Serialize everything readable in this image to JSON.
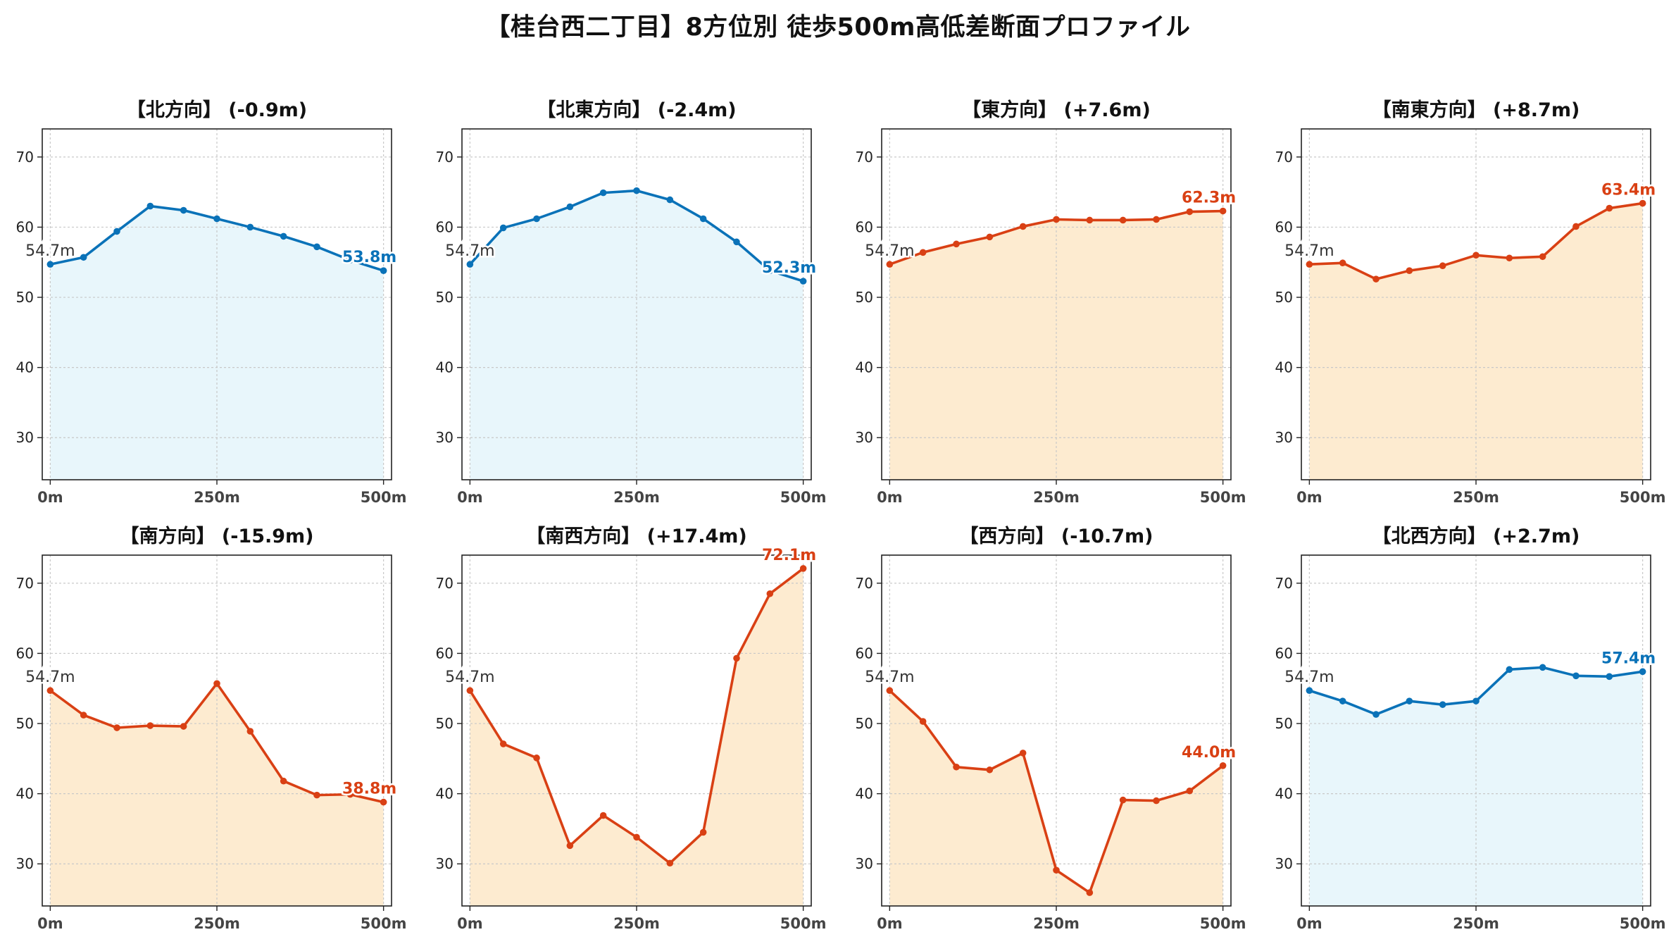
{
  "title": "【桂台西二丁目】8方位別 徒歩500m高低差断面プロファイル",
  "colors": {
    "uphill": "#d94014",
    "uphill_fill": "#fdebd0",
    "downhill": "#0a72b8",
    "downhill_fill": "#e8f6fb",
    "start_label": "#333333"
  },
  "chart_data": [
    {
      "type": "area",
      "title": "【北方向】 (-0.9m)",
      "trend": "down",
      "x": [
        0,
        50,
        100,
        150,
        200,
        250,
        300,
        350,
        400,
        450,
        500
      ],
      "y": [
        54.7,
        55.7,
        59.4,
        63.0,
        62.4,
        61.2,
        60.0,
        58.7,
        57.2,
        55.3,
        53.8
      ],
      "start_label": "54.7m",
      "end_label": "53.8m",
      "xticks": [
        "0m",
        "250m",
        "500m"
      ],
      "yticks": [
        "30",
        "40",
        "50",
        "60",
        "70"
      ],
      "ylim": [
        24,
        74
      ],
      "xlim": [
        -12,
        512
      ],
      "grid": true
    },
    {
      "type": "area",
      "title": "【北東方向】 (-2.4m)",
      "trend": "down",
      "x": [
        0,
        50,
        100,
        150,
        200,
        250,
        300,
        350,
        400,
        450,
        500
      ],
      "y": [
        54.7,
        59.9,
        61.2,
        62.9,
        64.9,
        65.2,
        63.9,
        61.2,
        57.9,
        53.8,
        52.3
      ],
      "start_label": "54.7m",
      "end_label": "52.3m",
      "xticks": [
        "0m",
        "250m",
        "500m"
      ],
      "yticks": [
        "30",
        "40",
        "50",
        "60",
        "70"
      ],
      "ylim": [
        24,
        74
      ],
      "xlim": [
        -12,
        512
      ],
      "grid": true
    },
    {
      "type": "area",
      "title": "【東方向】 (+7.6m)",
      "trend": "up",
      "x": [
        0,
        50,
        100,
        150,
        200,
        250,
        300,
        350,
        400,
        450,
        500
      ],
      "y": [
        54.7,
        56.4,
        57.6,
        58.6,
        60.1,
        61.1,
        61.0,
        61.0,
        61.1,
        62.2,
        62.3
      ],
      "start_label": "54.7m",
      "end_label": "62.3m",
      "xticks": [
        "0m",
        "250m",
        "500m"
      ],
      "yticks": [
        "30",
        "40",
        "50",
        "60",
        "70"
      ],
      "ylim": [
        24,
        74
      ],
      "xlim": [
        -12,
        512
      ],
      "grid": true
    },
    {
      "type": "area",
      "title": "【南東方向】 (+8.7m)",
      "trend": "up",
      "x": [
        0,
        50,
        100,
        150,
        200,
        250,
        300,
        350,
        400,
        450,
        500
      ],
      "y": [
        54.7,
        54.9,
        52.6,
        53.8,
        54.5,
        56.0,
        55.6,
        55.8,
        60.1,
        62.7,
        63.4
      ],
      "start_label": "54.7m",
      "end_label": "63.4m",
      "xticks": [
        "0m",
        "250m",
        "500m"
      ],
      "yticks": [
        "30",
        "40",
        "50",
        "60",
        "70"
      ],
      "ylim": [
        24,
        74
      ],
      "xlim": [
        -12,
        512
      ],
      "grid": true
    },
    {
      "type": "area",
      "title": "【南方向】 (-15.9m)",
      "trend": "up",
      "x": [
        0,
        50,
        100,
        150,
        200,
        250,
        300,
        350,
        400,
        450,
        500
      ],
      "y": [
        54.7,
        51.2,
        49.4,
        49.7,
        49.6,
        55.7,
        48.9,
        41.8,
        39.8,
        39.9,
        38.8
      ],
      "start_label": "54.7m",
      "end_label": "38.8m",
      "xticks": [
        "0m",
        "250m",
        "500m"
      ],
      "yticks": [
        "30",
        "40",
        "50",
        "60",
        "70"
      ],
      "ylim": [
        24,
        74
      ],
      "xlim": [
        -12,
        512
      ],
      "grid": true
    },
    {
      "type": "area",
      "title": "【南西方向】 (+17.4m)",
      "trend": "up",
      "x": [
        0,
        50,
        100,
        150,
        200,
        250,
        300,
        350,
        400,
        450,
        500
      ],
      "y": [
        54.7,
        47.1,
        45.1,
        32.6,
        36.9,
        33.8,
        30.1,
        34.5,
        59.3,
        68.5,
        72.1
      ],
      "start_label": "54.7m",
      "end_label": "72.1m",
      "xticks": [
        "0m",
        "250m",
        "500m"
      ],
      "yticks": [
        "30",
        "40",
        "50",
        "60",
        "70"
      ],
      "ylim": [
        24,
        74
      ],
      "xlim": [
        -12,
        512
      ],
      "grid": true
    },
    {
      "type": "area",
      "title": "【西方向】 (-10.7m)",
      "trend": "up",
      "x": [
        0,
        50,
        100,
        150,
        200,
        250,
        300,
        350,
        400,
        450,
        500
      ],
      "y": [
        54.7,
        50.3,
        43.8,
        43.4,
        45.8,
        29.1,
        25.9,
        39.1,
        39.0,
        40.4,
        44.0
      ],
      "start_label": "54.7m",
      "end_label": "44.0m",
      "xticks": [
        "0m",
        "250m",
        "500m"
      ],
      "yticks": [
        "30",
        "40",
        "50",
        "60",
        "70"
      ],
      "ylim": [
        24,
        74
      ],
      "xlim": [
        -12,
        512
      ],
      "grid": true
    },
    {
      "type": "area",
      "title": "【北西方向】 (+2.7m)",
      "trend": "down",
      "x": [
        0,
        50,
        100,
        150,
        200,
        250,
        300,
        350,
        400,
        450,
        500
      ],
      "y": [
        54.7,
        53.2,
        51.3,
        53.2,
        52.7,
        53.2,
        57.7,
        58.0,
        56.8,
        56.7,
        57.4
      ],
      "start_label": "54.7m",
      "end_label": "57.4m",
      "xticks": [
        "0m",
        "250m",
        "500m"
      ],
      "yticks": [
        "30",
        "40",
        "50",
        "60",
        "70"
      ],
      "ylim": [
        24,
        74
      ],
      "xlim": [
        -12,
        512
      ],
      "grid": true
    }
  ]
}
